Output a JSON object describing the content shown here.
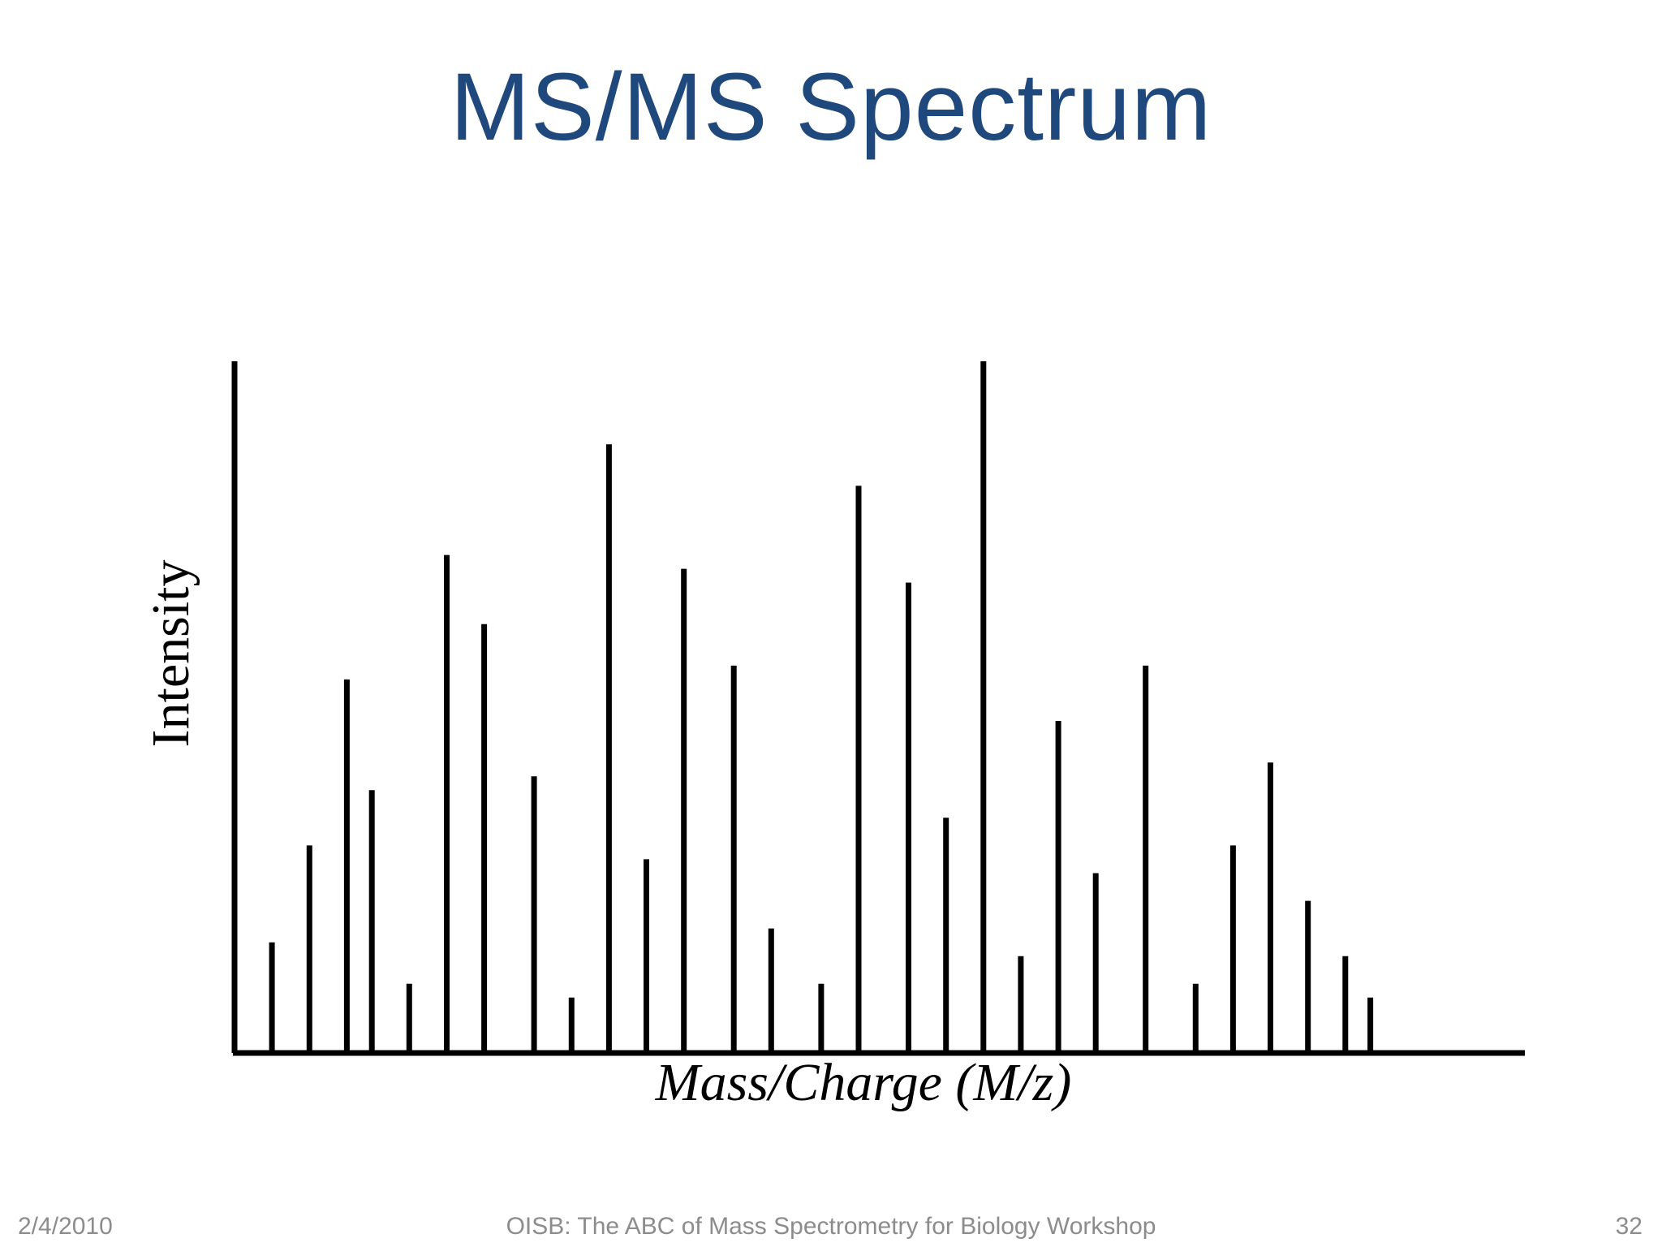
{
  "slide": {
    "title": "MS/MS Spectrum"
  },
  "chart_data": {
    "type": "bar",
    "xlabel": "Mass/Charge (M/z)",
    "ylabel": "Intensity",
    "ylim": [
      0,
      100
    ],
    "grid": false,
    "x": [
      0,
      3,
      6,
      9,
      11,
      14,
      17,
      20,
      24,
      27,
      30,
      33,
      36,
      40,
      43,
      47,
      50,
      54,
      57,
      60,
      63,
      66,
      69,
      73,
      77,
      80,
      83,
      86,
      89,
      91,
      94,
      97
    ],
    "values": [
      100,
      16,
      30,
      54,
      38,
      10,
      72,
      62,
      40,
      8,
      88,
      28,
      70,
      56,
      18,
      10,
      82,
      68,
      34,
      100,
      14,
      48,
      26,
      56,
      10,
      30,
      42,
      22,
      14,
      8,
      0,
      0
    ],
    "bar_style": "thin-stick",
    "bar_color": "#000000"
  },
  "footer": {
    "date": "2/4/2010",
    "center": "OISB: The ABC of Mass Spectrometry for Biology Workshop",
    "page": "32"
  }
}
